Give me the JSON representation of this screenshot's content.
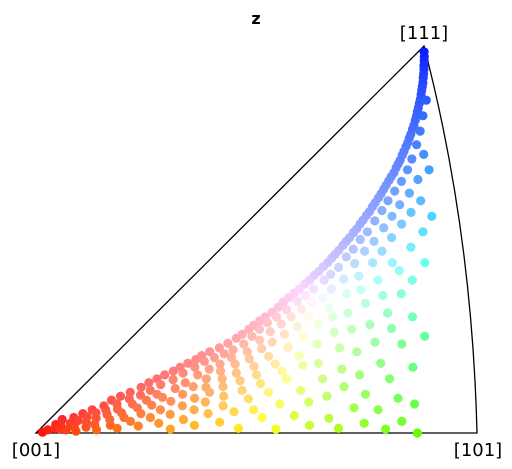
{
  "chart_data": {
    "type": "scatter",
    "title": "z",
    "projection": "inverse pole figure (stereographic standard triangle)",
    "corner_labels": {
      "origin": "[001]",
      "right": "[101]",
      "top": "[111]"
    },
    "colormap": "IPF coloring: red at [001], green at [101], blue at [111], white at triangle center",
    "points": [
      [
        0.005,
        0.002
      ],
      [
        0.012,
        0.008
      ],
      [
        0.018,
        0.022
      ],
      [
        0.025,
        0.012
      ],
      [
        0.022,
        0.035
      ],
      [
        0.032,
        0.02
      ],
      [
        0.038,
        0.01
      ],
      [
        0.045,
        0.04
      ],
      [
        0.05,
        0.025
      ],
      [
        0.055,
        0.008
      ],
      [
        0.058,
        0.05
      ],
      [
        0.062,
        0.032
      ],
      [
        0.068,
        0.015
      ],
      [
        0.072,
        0.06
      ],
      [
        0.075,
        0.042
      ],
      [
        0.08,
        0.005
      ],
      [
        0.085,
        0.028
      ],
      [
        0.088,
        0.052
      ],
      [
        0.092,
        0.07
      ],
      [
        0.095,
        0.015
      ],
      [
        0.098,
        0.085
      ],
      [
        0.1,
        0.038
      ],
      [
        0.105,
        0.06
      ],
      [
        0.11,
        0.022
      ],
      [
        0.112,
        0.095
      ],
      [
        0.118,
        0.048
      ],
      [
        0.12,
        0.075
      ],
      [
        0.125,
        0.008
      ],
      [
        0.128,
        0.105
      ],
      [
        0.132,
        0.062
      ],
      [
        0.135,
        0.035
      ],
      [
        0.14,
        0.088
      ],
      [
        0.145,
        0.118
      ],
      [
        0.148,
        0.02
      ],
      [
        0.15,
        0.052
      ],
      [
        0.155,
        0.13
      ],
      [
        0.158,
        0.075
      ],
      [
        0.16,
        0.098
      ],
      [
        0.165,
        0.04
      ],
      [
        0.168,
        0.14
      ],
      [
        0.17,
        0.012
      ],
      [
        0.175,
        0.11
      ],
      [
        0.178,
        0.065
      ],
      [
        0.18,
        0.15
      ],
      [
        0.185,
        0.085
      ],
      [
        0.188,
        0.03
      ],
      [
        0.19,
        0.125
      ],
      [
        0.195,
        0.16
      ],
      [
        0.198,
        0.05
      ],
      [
        0.2,
        0.1
      ],
      [
        0.205,
        0.17
      ],
      [
        0.208,
        0.072
      ],
      [
        0.212,
        0.138
      ],
      [
        0.215,
        0.018
      ],
      [
        0.218,
        0.18
      ],
      [
        0.22,
        0.092
      ],
      [
        0.225,
        0.155
      ],
      [
        0.228,
        0.04
      ],
      [
        0.232,
        0.19
      ],
      [
        0.235,
        0.115
      ],
      [
        0.238,
        0.06
      ],
      [
        0.24,
        0.2
      ],
      [
        0.245,
        0.17
      ],
      [
        0.248,
        0.082
      ],
      [
        0.25,
        0.13
      ],
      [
        0.255,
        0.21
      ],
      [
        0.258,
        0.025
      ],
      [
        0.26,
        0.185
      ],
      [
        0.265,
        0.1
      ],
      [
        0.268,
        0.15
      ],
      [
        0.27,
        0.048
      ],
      [
        0.275,
        0.22
      ],
      [
        0.278,
        0.12
      ],
      [
        0.28,
        0.195
      ],
      [
        0.285,
        0.07
      ],
      [
        0.288,
        0.165
      ],
      [
        0.29,
        0.232
      ],
      [
        0.295,
        0.01
      ],
      [
        0.298,
        0.14
      ],
      [
        0.3,
        0.205
      ],
      [
        0.302,
        0.09
      ],
      [
        0.305,
        0.245
      ],
      [
        0.308,
        0.178
      ],
      [
        0.31,
        0.035
      ],
      [
        0.312,
        0.118
      ],
      [
        0.315,
        0.255
      ],
      [
        0.318,
        0.215
      ],
      [
        0.32,
        0.06
      ],
      [
        0.322,
        0.16
      ],
      [
        0.325,
        0.268
      ],
      [
        0.328,
        0.195
      ],
      [
        0.33,
        0.105
      ],
      [
        0.332,
        0.278
      ],
      [
        0.335,
        0.08
      ],
      [
        0.338,
        0.23
      ],
      [
        0.34,
        0.14
      ],
      [
        0.342,
        0.29
      ],
      [
        0.345,
        0.02
      ],
      [
        0.348,
        0.25
      ],
      [
        0.35,
        0.178
      ],
      [
        0.352,
        0.3
      ],
      [
        0.355,
        0.12
      ],
      [
        0.358,
        0.268
      ],
      [
        0.36,
        0.05
      ],
      [
        0.362,
        0.21
      ],
      [
        0.365,
        0.312
      ],
      [
        0.368,
        0.155
      ],
      [
        0.37,
        0.285
      ],
      [
        0.372,
        0.095
      ],
      [
        0.375,
        0.325
      ],
      [
        0.378,
        0.24
      ],
      [
        0.38,
        0.192
      ],
      [
        0.382,
        0.338
      ],
      [
        0.385,
        0.07
      ],
      [
        0.388,
        0.3
      ],
      [
        0.39,
        0.135
      ],
      [
        0.392,
        0.35
      ],
      [
        0.395,
        0.262
      ],
      [
        0.398,
        0.218
      ],
      [
        0.4,
        0.028
      ],
      [
        0.402,
        0.362
      ],
      [
        0.405,
        0.172
      ],
      [
        0.408,
        0.318
      ],
      [
        0.41,
        0.11
      ],
      [
        0.412,
        0.372
      ],
      [
        0.415,
        0.282
      ],
      [
        0.418,
        0.235
      ],
      [
        0.42,
        0.055
      ],
      [
        0.422,
        0.385
      ],
      [
        0.425,
        0.15
      ],
      [
        0.428,
        0.34
      ],
      [
        0.43,
        0.198
      ],
      [
        0.432,
        0.395
      ],
      [
        0.435,
        0.3
      ],
      [
        0.438,
        0.088
      ],
      [
        0.44,
        0.408
      ],
      [
        0.442,
        0.255
      ],
      [
        0.445,
        0.355
      ],
      [
        0.448,
        0.128
      ],
      [
        0.45,
        0.418
      ],
      [
        0.452,
        0.012
      ],
      [
        0.455,
        0.32
      ],
      [
        0.458,
        0.43
      ],
      [
        0.46,
        0.178
      ],
      [
        0.462,
        0.372
      ],
      [
        0.465,
        0.06
      ],
      [
        0.468,
        0.44
      ],
      [
        0.47,
        0.275
      ],
      [
        0.472,
        0.222
      ],
      [
        0.475,
        0.452
      ],
      [
        0.478,
        0.338
      ],
      [
        0.48,
        0.105
      ],
      [
        0.482,
        0.462
      ],
      [
        0.485,
        0.395
      ],
      [
        0.488,
        0.16
      ],
      [
        0.49,
        0.472
      ],
      [
        0.492,
        0.3
      ],
      [
        0.495,
        0.04
      ],
      [
        0.498,
        0.485
      ],
      [
        0.5,
        0.41
      ],
      [
        0.502,
        0.248
      ],
      [
        0.505,
        0.495
      ],
      [
        0.508,
        0.35
      ],
      [
        0.51,
        0.14
      ],
      [
        0.512,
        0.505
      ],
      [
        0.515,
        0.2
      ],
      [
        0.518,
        0.428
      ],
      [
        0.52,
        0.518
      ],
      [
        0.522,
        0.075
      ],
      [
        0.525,
        0.372
      ],
      [
        0.528,
        0.528
      ],
      [
        0.53,
        0.282
      ],
      [
        0.532,
        0.455
      ],
      [
        0.535,
        0.54
      ],
      [
        0.538,
        0.175
      ],
      [
        0.54,
        0.01
      ],
      [
        0.542,
        0.55
      ],
      [
        0.545,
        0.322
      ],
      [
        0.548,
        0.475
      ],
      [
        0.55,
        0.562
      ],
      [
        0.552,
        0.23
      ],
      [
        0.555,
        0.398
      ],
      [
        0.558,
        0.572
      ],
      [
        0.56,
        0.11
      ],
      [
        0.562,
        0.5
      ],
      [
        0.565,
        0.585
      ],
      [
        0.568,
        0.3
      ],
      [
        0.57,
        0.045
      ],
      [
        0.572,
        0.595
      ],
      [
        0.575,
        0.438
      ],
      [
        0.578,
        0.18
      ],
      [
        0.58,
        0.608
      ],
      [
        0.582,
        0.52
      ],
      [
        0.585,
        0.36
      ],
      [
        0.588,
        0.618
      ],
      [
        0.59,
        0.26
      ],
      [
        0.592,
        0.08
      ],
      [
        0.595,
        0.63
      ],
      [
        0.598,
        0.47
      ],
      [
        0.6,
        0.548
      ],
      [
        0.602,
        0.64
      ],
      [
        0.605,
        0.14
      ],
      [
        0.608,
        0.405
      ],
      [
        0.61,
        0.652
      ],
      [
        0.612,
        0.31
      ],
      [
        0.615,
        0.02
      ],
      [
        0.618,
        0.662
      ],
      [
        0.62,
        0.575
      ],
      [
        0.622,
        0.22
      ],
      [
        0.625,
        0.495
      ],
      [
        0.628,
        0.672
      ],
      [
        0.63,
        0.37
      ],
      [
        0.632,
        0.095
      ],
      [
        0.635,
        0.685
      ],
      [
        0.638,
        0.6
      ],
      [
        0.64,
        0.268
      ],
      [
        0.642,
        0.695
      ],
      [
        0.645,
        0.44
      ],
      [
        0.648,
        0.165
      ],
      [
        0.65,
        0.705
      ],
      [
        0.652,
        0.53
      ],
      [
        0.655,
        0.038
      ],
      [
        0.658,
        0.718
      ],
      [
        0.66,
        0.335
      ],
      [
        0.662,
        0.625
      ],
      [
        0.665,
        0.728
      ],
      [
        0.668,
        0.12
      ],
      [
        0.67,
        0.47
      ],
      [
        0.672,
        0.74
      ],
      [
        0.675,
        0.21
      ],
      [
        0.678,
        0.56
      ],
      [
        0.68,
        0.75
      ],
      [
        0.682,
        0.395
      ],
      [
        0.685,
        0.012
      ],
      [
        0.688,
        0.762
      ],
      [
        0.69,
        0.65
      ],
      [
        0.692,
        0.28
      ],
      [
        0.695,
        0.772
      ],
      [
        0.698,
        0.505
      ],
      [
        0.7,
        0.15
      ],
      [
        0.702,
        0.785
      ],
      [
        0.705,
        0.59
      ],
      [
        0.708,
        0.065
      ],
      [
        0.71,
        0.795
      ],
      [
        0.712,
        0.355
      ],
      [
        0.715,
        0.68
      ],
      [
        0.718,
        0.808
      ],
      [
        0.72,
        0.235
      ],
      [
        0.722,
        0.44
      ],
      [
        0.725,
        0.818
      ],
      [
        0.728,
        0.1
      ],
      [
        0.73,
        0.83
      ],
      [
        0.732,
        0.54
      ],
      [
        0.735,
        0.708
      ],
      [
        0.738,
        0.84
      ],
      [
        0.74,
        0.31
      ],
      [
        0.742,
        0.025
      ],
      [
        0.745,
        0.852
      ],
      [
        0.748,
        0.62
      ],
      [
        0.75,
        0.18
      ],
      [
        0.752,
        0.862
      ],
      [
        0.755,
        0.42
      ],
      [
        0.758,
        0.745
      ],
      [
        0.76,
        0.875
      ],
      [
        0.762,
        0.27
      ],
      [
        0.765,
        0.885
      ],
      [
        0.768,
        0.06
      ],
      [
        0.77,
        0.57
      ],
      [
        0.772,
        0.895
      ],
      [
        0.775,
        0.36
      ],
      [
        0.778,
        0.78
      ],
      [
        0.78,
        0.905
      ],
      [
        0.782,
        0.14
      ],
      [
        0.785,
        0.918
      ],
      [
        0.788,
        0.48
      ],
      [
        0.79,
        0.655
      ],
      [
        0.792,
        0.928
      ],
      [
        0.795,
        0.01
      ],
      [
        0.798,
        0.94
      ],
      [
        0.8,
        0.23
      ],
      [
        0.802,
        0.82
      ],
      [
        0.805,
        0.95
      ],
      [
        0.808,
        0.395
      ],
      [
        0.81,
        0.962
      ],
      [
        0.812,
        0.09
      ],
      [
        0.815,
        0.6
      ],
      [
        0.818,
        0.972
      ],
      [
        0.82,
        0.72
      ],
      [
        0.822,
        0.3
      ],
      [
        0.825,
        0.985
      ],
      [
        0.83,
        0.03
      ],
      [
        0.835,
        0.52
      ],
      [
        0.84,
        0.17
      ],
      [
        0.845,
        0.86
      ],
      [
        0.85,
        0.44
      ],
      [
        0.855,
        0.075
      ],
      [
        0.86,
        0.68
      ],
      [
        0.865,
        0.25
      ],
      [
        0.87,
        0.0
      ],
      [
        0.875,
        0.56
      ]
    ]
  }
}
